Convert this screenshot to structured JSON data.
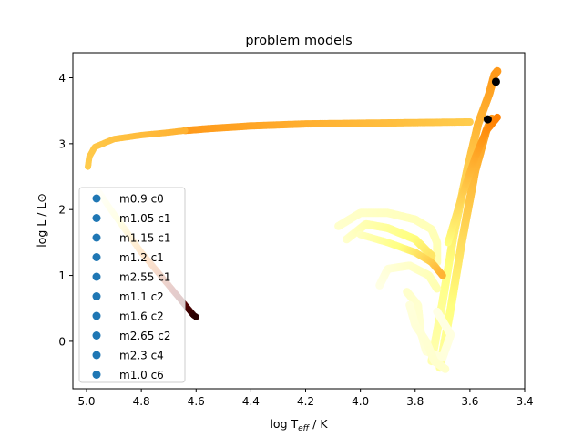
{
  "chart_data": {
    "type": "scatter",
    "title": "problem models",
    "xlabel_main": "log T",
    "xlabel_sub": "eff",
    "xlabel_tail": " / K",
    "ylabel": "log L / L⊙",
    "xlim": [
      5.05,
      3.4
    ],
    "ylim": [
      -0.72,
      4.38
    ],
    "x_reversed": true,
    "xticks": [
      5.0,
      4.8,
      4.6,
      4.4,
      4.2,
      4.0,
      3.8,
      3.6,
      3.4
    ],
    "xtick_labels": [
      "5.0",
      "4.8",
      "4.6",
      "4.4",
      "4.2",
      "4.0",
      "3.8",
      "3.6",
      "3.4"
    ],
    "yticks": [
      0,
      1,
      2,
      3,
      4
    ],
    "ytick_labels": [
      "0",
      "1",
      "2",
      "3",
      "4"
    ],
    "legend_position": "lower-left",
    "legend_color": "#1f77b4",
    "series": [
      {
        "name": "m0.9 c0"
      },
      {
        "name": "m1.05 c1"
      },
      {
        "name": "m1.15 c1"
      },
      {
        "name": "m1.2 c1"
      },
      {
        "name": "m2.55 c1"
      },
      {
        "name": "m1.1 c2"
      },
      {
        "name": "m1.6 c2"
      },
      {
        "name": "m2.65 c2"
      },
      {
        "name": "m2.3 c4"
      },
      {
        "name": "m1.0 c6"
      }
    ],
    "colormap": "afmhot",
    "tracks": [
      {
        "color_range": [
          0.55,
          0.65
        ],
        "width": 8,
        "points": [
          [
            4.64,
            3.2
          ],
          [
            4.55,
            3.23
          ],
          [
            4.4,
            3.27
          ],
          [
            4.2,
            3.3
          ],
          [
            4.0,
            3.31
          ],
          [
            3.8,
            3.32
          ],
          [
            3.6,
            3.33
          ]
        ]
      },
      {
        "color_range": [
          0.65,
          0.6
        ],
        "width": 7,
        "points": [
          [
            4.995,
            2.65
          ],
          [
            4.99,
            2.8
          ],
          [
            4.97,
            2.95
          ],
          [
            4.9,
            3.07
          ],
          [
            4.8,
            3.13
          ],
          [
            4.7,
            3.17
          ],
          [
            4.64,
            3.2
          ]
        ]
      },
      {
        "color_range": [
          0.95,
          0.08
        ],
        "width": 7,
        "points": [
          [
            4.955,
            2.27
          ],
          [
            4.92,
            2.05
          ],
          [
            4.86,
            1.7
          ],
          [
            4.8,
            1.35
          ],
          [
            4.72,
            0.95
          ],
          [
            4.66,
            0.65
          ],
          [
            4.61,
            0.4
          ],
          [
            4.6,
            0.37
          ]
        ]
      },
      {
        "color_range": [
          0.85,
          0.55
        ],
        "width": 9,
        "points": [
          [
            3.74,
            -0.3
          ],
          [
            3.7,
            0.6
          ],
          [
            3.66,
            1.6
          ],
          [
            3.61,
            2.6
          ],
          [
            3.57,
            3.3
          ],
          [
            3.53,
            3.75
          ],
          [
            3.51,
            4.05
          ],
          [
            3.5,
            4.1
          ]
        ]
      },
      {
        "color_range": [
          0.82,
          0.55
        ],
        "width": 9,
        "points": [
          [
            3.71,
            -0.4
          ],
          [
            3.67,
            0.5
          ],
          [
            3.63,
            1.5
          ],
          [
            3.58,
            2.6
          ],
          [
            3.54,
            3.2
          ],
          [
            3.52,
            3.38
          ]
        ]
      },
      {
        "color_range": [
          0.75,
          0.5
        ],
        "width": 8,
        "points": [
          [
            3.68,
            1.5
          ],
          [
            3.63,
            2.2
          ],
          [
            3.58,
            2.8
          ],
          [
            3.54,
            3.2
          ],
          [
            3.5,
            3.4
          ]
        ]
      },
      {
        "color_range": [
          0.9,
          0.85
        ],
        "width": 9,
        "points": [
          [
            4.08,
            1.75
          ],
          [
            4.0,
            1.95
          ],
          [
            3.9,
            1.95
          ],
          [
            3.8,
            1.85
          ],
          [
            3.74,
            1.7
          ],
          [
            3.72,
            1.5
          ],
          [
            3.72,
            1.2
          ]
        ]
      },
      {
        "color_range": [
          0.9,
          0.7
        ],
        "width": 9,
        "points": [
          [
            4.05,
            1.55
          ],
          [
            3.98,
            1.78
          ],
          [
            3.9,
            1.72
          ],
          [
            3.8,
            1.55
          ],
          [
            3.74,
            1.3
          ]
        ]
      },
      {
        "color_range": [
          0.88,
          0.6
        ],
        "width": 8,
        "points": [
          [
            4.0,
            1.62
          ],
          [
            3.9,
            1.5
          ],
          [
            3.8,
            1.35
          ],
          [
            3.74,
            1.2
          ],
          [
            3.7,
            1.0
          ]
        ]
      },
      {
        "color_range": [
          0.95,
          0.85
        ],
        "width": 9,
        "points": [
          [
            3.93,
            0.85
          ],
          [
            3.9,
            1.1
          ],
          [
            3.82,
            1.15
          ],
          [
            3.75,
            1.0
          ],
          [
            3.72,
            0.8
          ]
        ]
      },
      {
        "color_range": [
          0.95,
          0.9
        ],
        "width": 9,
        "points": [
          [
            3.72,
            0.45
          ],
          [
            3.67,
            0.1
          ],
          [
            3.7,
            -0.25
          ],
          [
            3.76,
            -0.15
          ],
          [
            3.78,
            0.15
          ],
          [
            3.79,
            0.55
          ],
          [
            3.83,
            0.75
          ]
        ]
      },
      {
        "color_range": [
          0.93,
          0.9
        ],
        "width": 9,
        "points": [
          [
            3.82,
            0.55
          ],
          [
            3.8,
            0.25
          ],
          [
            3.76,
            0.0
          ],
          [
            3.73,
            -0.3
          ],
          [
            3.69,
            -0.42
          ]
        ]
      }
    ],
    "markers": [
      [
        3.505,
        3.94
      ],
      [
        3.535,
        3.37
      ]
    ]
  }
}
